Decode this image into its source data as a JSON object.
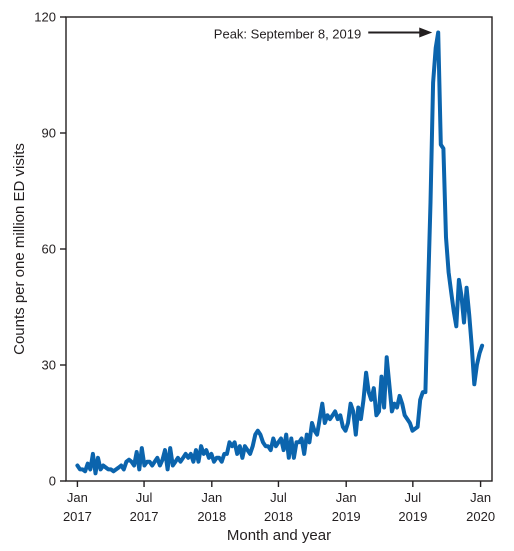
{
  "chart_data": {
    "type": "line",
    "xlabel": "Month and year",
    "ylabel": "Counts per one million ED visits",
    "ylim": [
      0,
      120
    ],
    "yticks": [
      "0",
      "30",
      "60",
      "90",
      "120"
    ],
    "xticks": [
      {
        "x": "2017-01-01",
        "line1": "Jan",
        "line2": "2017"
      },
      {
        "x": "2017-07-01",
        "line1": "Jul",
        "line2": "2017"
      },
      {
        "x": "2018-01-01",
        "line1": "Jan",
        "line2": "2018"
      },
      {
        "x": "2018-07-01",
        "line1": "Jul",
        "line2": "2018"
      },
      {
        "x": "2019-01-01",
        "line1": "Jan",
        "line2": "2019"
      },
      {
        "x": "2019-07-01",
        "line1": "Jul",
        "line2": "2019"
      },
      {
        "x": "2020-01-01",
        "line1": "Jan",
        "line2": "2020"
      }
    ],
    "xlim": [
      "2016-12-01",
      "2020-02-01"
    ],
    "annotation": {
      "text": "Peak: September 8, 2019",
      "x": "2019-09-08",
      "y": 116
    },
    "line_color": "#0b64ad",
    "series": [
      {
        "points": [
          [
            "2017-01-01",
            4
          ],
          [
            "2017-01-08",
            3
          ],
          [
            "2017-01-15",
            3
          ],
          [
            "2017-01-22",
            2.5
          ],
          [
            "2017-01-29",
            4.5
          ],
          [
            "2017-02-05",
            3
          ],
          [
            "2017-02-12",
            7
          ],
          [
            "2017-02-19",
            2
          ],
          [
            "2017-02-26",
            6
          ],
          [
            "2017-03-05",
            3
          ],
          [
            "2017-03-12",
            4
          ],
          [
            "2017-03-19",
            3.5
          ],
          [
            "2017-03-26",
            3
          ],
          [
            "2017-04-02",
            3
          ],
          [
            "2017-04-09",
            2.5
          ],
          [
            "2017-04-16",
            3
          ],
          [
            "2017-04-23",
            3.5
          ],
          [
            "2017-04-30",
            4
          ],
          [
            "2017-05-07",
            3
          ],
          [
            "2017-05-14",
            5
          ],
          [
            "2017-05-21",
            5.5
          ],
          [
            "2017-05-28",
            5
          ],
          [
            "2017-06-04",
            4
          ],
          [
            "2017-06-11",
            7.5
          ],
          [
            "2017-06-18",
            3
          ],
          [
            "2017-06-25",
            8.5
          ],
          [
            "2017-07-02",
            4
          ],
          [
            "2017-07-09",
            5
          ],
          [
            "2017-07-16",
            5
          ],
          [
            "2017-07-23",
            4
          ],
          [
            "2017-07-30",
            5
          ],
          [
            "2017-08-06",
            6
          ],
          [
            "2017-08-13",
            4
          ],
          [
            "2017-08-20",
            5.5
          ],
          [
            "2017-08-27",
            8
          ],
          [
            "2017-09-03",
            3
          ],
          [
            "2017-09-10",
            8.5
          ],
          [
            "2017-09-17",
            4
          ],
          [
            "2017-09-24",
            5
          ],
          [
            "2017-10-01",
            6
          ],
          [
            "2017-10-08",
            5
          ],
          [
            "2017-10-15",
            6
          ],
          [
            "2017-10-22",
            7
          ],
          [
            "2017-10-29",
            6
          ],
          [
            "2017-11-05",
            7
          ],
          [
            "2017-11-12",
            5
          ],
          [
            "2017-11-19",
            8
          ],
          [
            "2017-11-26",
            5
          ],
          [
            "2017-12-03",
            9
          ],
          [
            "2017-12-10",
            7
          ],
          [
            "2017-12-17",
            8
          ],
          [
            "2017-12-24",
            6
          ],
          [
            "2017-12-31",
            7
          ],
          [
            "2018-01-07",
            5
          ],
          [
            "2018-01-14",
            6
          ],
          [
            "2018-01-21",
            6
          ],
          [
            "2018-01-28",
            5
          ],
          [
            "2018-02-04",
            7
          ],
          [
            "2018-02-11",
            7
          ],
          [
            "2018-02-18",
            10
          ],
          [
            "2018-02-25",
            9
          ],
          [
            "2018-03-04",
            10
          ],
          [
            "2018-03-11",
            7
          ],
          [
            "2018-03-18",
            9
          ],
          [
            "2018-03-25",
            6
          ],
          [
            "2018-04-01",
            9
          ],
          [
            "2018-04-08",
            8
          ],
          [
            "2018-04-15",
            7
          ],
          [
            "2018-04-22",
            9
          ],
          [
            "2018-04-29",
            12
          ],
          [
            "2018-05-06",
            13
          ],
          [
            "2018-05-13",
            12
          ],
          [
            "2018-05-20",
            10
          ],
          [
            "2018-05-27",
            9
          ],
          [
            "2018-06-03",
            9
          ],
          [
            "2018-06-10",
            8
          ],
          [
            "2018-06-17",
            11
          ],
          [
            "2018-06-24",
            9
          ],
          [
            "2018-07-01",
            10
          ],
          [
            "2018-07-08",
            11
          ],
          [
            "2018-07-15",
            8
          ],
          [
            "2018-07-22",
            12
          ],
          [
            "2018-07-29",
            6
          ],
          [
            "2018-08-05",
            11
          ],
          [
            "2018-08-12",
            6
          ],
          [
            "2018-08-19",
            10
          ],
          [
            "2018-08-26",
            10
          ],
          [
            "2018-09-02",
            11
          ],
          [
            "2018-09-09",
            7
          ],
          [
            "2018-09-16",
            12
          ],
          [
            "2018-09-23",
            10
          ],
          [
            "2018-09-30",
            15
          ],
          [
            "2018-10-07",
            13
          ],
          [
            "2018-10-14",
            12
          ],
          [
            "2018-10-21",
            16
          ],
          [
            "2018-10-28",
            20
          ],
          [
            "2018-11-04",
            15
          ],
          [
            "2018-11-11",
            17
          ],
          [
            "2018-11-18",
            16
          ],
          [
            "2018-11-25",
            17
          ],
          [
            "2018-12-02",
            18
          ],
          [
            "2018-12-09",
            16
          ],
          [
            "2018-12-16",
            17
          ],
          [
            "2018-12-23",
            14
          ],
          [
            "2018-12-30",
            13
          ],
          [
            "2019-01-06",
            15
          ],
          [
            "2019-01-13",
            20
          ],
          [
            "2019-01-20",
            18
          ],
          [
            "2019-01-27",
            12
          ],
          [
            "2019-02-03",
            19
          ],
          [
            "2019-02-10",
            16
          ],
          [
            "2019-02-17",
            21
          ],
          [
            "2019-02-24",
            28
          ],
          [
            "2019-03-03",
            23
          ],
          [
            "2019-03-10",
            21
          ],
          [
            "2019-03-17",
            24
          ],
          [
            "2019-03-24",
            17
          ],
          [
            "2019-03-31",
            18
          ],
          [
            "2019-04-07",
            27
          ],
          [
            "2019-04-14",
            19
          ],
          [
            "2019-04-21",
            32
          ],
          [
            "2019-04-28",
            25
          ],
          [
            "2019-05-05",
            18
          ],
          [
            "2019-05-12",
            20
          ],
          [
            "2019-05-19",
            19
          ],
          [
            "2019-05-26",
            22
          ],
          [
            "2019-06-02",
            20
          ],
          [
            "2019-06-09",
            17
          ],
          [
            "2019-06-16",
            16
          ],
          [
            "2019-06-23",
            15
          ],
          [
            "2019-06-30",
            13
          ],
          [
            "2019-07-07",
            13.5
          ],
          [
            "2019-07-14",
            14
          ],
          [
            "2019-07-21",
            21
          ],
          [
            "2019-07-28",
            23
          ],
          [
            "2019-08-04",
            23
          ],
          [
            "2019-08-11",
            48
          ],
          [
            "2019-08-18",
            72
          ],
          [
            "2019-08-25",
            103
          ],
          [
            "2019-09-01",
            112
          ],
          [
            "2019-09-08",
            116
          ],
          [
            "2019-09-15",
            87
          ],
          [
            "2019-09-22",
            86
          ],
          [
            "2019-09-29",
            63
          ],
          [
            "2019-10-06",
            54
          ],
          [
            "2019-10-13",
            49
          ],
          [
            "2019-10-20",
            44
          ],
          [
            "2019-10-27",
            40
          ],
          [
            "2019-11-03",
            52
          ],
          [
            "2019-11-10",
            48
          ],
          [
            "2019-11-17",
            41
          ],
          [
            "2019-11-24",
            50
          ],
          [
            "2019-12-01",
            43
          ],
          [
            "2019-12-08",
            35
          ],
          [
            "2019-12-15",
            25
          ],
          [
            "2019-12-22",
            30
          ],
          [
            "2019-12-29",
            33
          ],
          [
            "2020-01-05",
            35
          ]
        ]
      }
    ]
  }
}
